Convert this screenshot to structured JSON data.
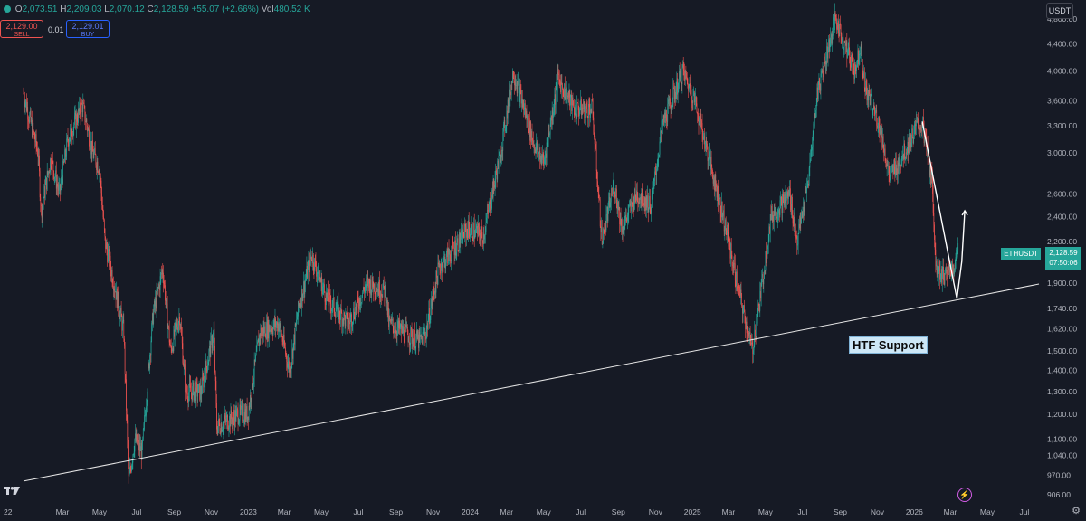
{
  "header": {
    "open_label": "O",
    "open": "2,073.51",
    "high_label": "H",
    "high": "2,209.03",
    "low_label": "L",
    "low": "2,070.12",
    "close_label": "C",
    "close": "2,128.59",
    "change": "+55.07 (+2.66%)",
    "vol_label": "Vol",
    "vol": "480.52 K"
  },
  "trade": {
    "sell_price": "2,129.00",
    "sell_label": "SELL",
    "spread": "0.01",
    "buy_price": "2,129.01",
    "buy_label": "BUY"
  },
  "currency": "USDT",
  "symbol_tag": "ETHUSDT",
  "price_tag": {
    "price": "2,128.59",
    "countdown": "07:50:06"
  },
  "annotation": "HTF Support",
  "logo": "TV",
  "colors": {
    "background": "#161a25",
    "up": "#26a69a",
    "down": "#ef5350",
    "trendline": "#e6e6e6",
    "label_bg": "#cde7f7"
  },
  "chart_data": {
    "type": "candlestick",
    "title": "",
    "scale": "log",
    "ylim": [
      880,
      5000
    ],
    "y_ticks": [
      4800,
      4400,
      4000,
      3600,
      3300,
      3000,
      2600,
      2400,
      2200,
      1900,
      1740,
      1620,
      1500,
      1400,
      1300,
      1200,
      1100,
      1040,
      970,
      906
    ],
    "y_tick_labels": [
      "4,800.00",
      "4,400.00",
      "4,000.00",
      "3,600.00",
      "3,300.00",
      "3,000.00",
      "2,600.00",
      "2,400.00",
      "2,200.00",
      "1,900.00",
      "1,740.00",
      "1,620.00",
      "1,500.00",
      "1,400.00",
      "1,300.00",
      "1,200.00",
      "1,100.00",
      "1,040.00",
      "970.00",
      "906.00"
    ],
    "x_tick_labels": [
      "22",
      "Mar",
      "May",
      "Jul",
      "Sep",
      "Nov",
      "2023",
      "Mar",
      "May",
      "Jul",
      "Sep",
      "Nov",
      "2024",
      "Mar",
      "May",
      "Jul",
      "Sep",
      "Nov",
      "2025",
      "Mar",
      "May",
      "Jul",
      "Sep",
      "Nov",
      "2026",
      "Mar",
      "May",
      "Jul"
    ],
    "x_tick_dates": [
      "2022-01-01",
      "2022-03-01",
      "2022-05-01",
      "2022-07-01",
      "2022-09-01",
      "2022-11-01",
      "2023-01-01",
      "2023-03-01",
      "2023-05-01",
      "2023-07-01",
      "2023-09-01",
      "2023-11-01",
      "2024-01-01",
      "2024-03-01",
      "2024-05-01",
      "2024-07-01",
      "2024-09-01",
      "2024-11-01",
      "2025-01-01",
      "2025-03-01",
      "2025-05-01",
      "2025-07-01",
      "2025-09-01",
      "2025-11-01",
      "2026-01-01",
      "2026-03-01",
      "2026-05-01",
      "2026-07-01"
    ],
    "last_price": 2128.59,
    "price_path": [
      {
        "date": "2021-12-27",
        "close": 3700
      },
      {
        "date": "2022-01-20",
        "close": 3000
      },
      {
        "date": "2022-01-25",
        "close": 2450
      },
      {
        "date": "2022-02-10",
        "close": 2950
      },
      {
        "date": "2022-02-24",
        "close": 2600
      },
      {
        "date": "2022-03-10",
        "close": 3150
      },
      {
        "date": "2022-03-25",
        "close": 3400
      },
      {
        "date": "2022-04-03",
        "close": 3550
      },
      {
        "date": "2022-04-20",
        "close": 3000
      },
      {
        "date": "2022-05-01",
        "close": 2850
      },
      {
        "date": "2022-05-10",
        "close": 2200
      },
      {
        "date": "2022-05-25",
        "close": 1900
      },
      {
        "date": "2022-06-10",
        "close": 1600
      },
      {
        "date": "2022-06-18",
        "close": 950
      },
      {
        "date": "2022-06-28",
        "close": 1100
      },
      {
        "date": "2022-07-10",
        "close": 1050
      },
      {
        "date": "2022-07-28",
        "close": 1700
      },
      {
        "date": "2022-08-13",
        "close": 2000
      },
      {
        "date": "2022-08-26",
        "close": 1500
      },
      {
        "date": "2022-09-10",
        "close": 1700
      },
      {
        "date": "2022-09-20",
        "close": 1300
      },
      {
        "date": "2022-10-15",
        "close": 1300
      },
      {
        "date": "2022-11-05",
        "close": 1600
      },
      {
        "date": "2022-11-10",
        "close": 1150
      },
      {
        "date": "2022-12-15",
        "close": 1200
      },
      {
        "date": "2022-12-31",
        "close": 1200
      },
      {
        "date": "2023-01-20",
        "close": 1600
      },
      {
        "date": "2023-02-20",
        "close": 1650
      },
      {
        "date": "2023-03-10",
        "close": 1400
      },
      {
        "date": "2023-03-25",
        "close": 1750
      },
      {
        "date": "2023-04-15",
        "close": 2100
      },
      {
        "date": "2023-05-10",
        "close": 1800
      },
      {
        "date": "2023-06-15",
        "close": 1650
      },
      {
        "date": "2023-07-15",
        "close": 1900
      },
      {
        "date": "2023-08-15",
        "close": 1850
      },
      {
        "date": "2023-08-20",
        "close": 1650
      },
      {
        "date": "2023-10-10",
        "close": 1550
      },
      {
        "date": "2023-10-20",
        "close": 1600
      },
      {
        "date": "2023-11-10",
        "close": 2000
      },
      {
        "date": "2023-12-28",
        "close": 2300
      },
      {
        "date": "2024-01-23",
        "close": 2250
      },
      {
        "date": "2024-02-20",
        "close": 3000
      },
      {
        "date": "2024-03-12",
        "close": 4000
      },
      {
        "date": "2024-04-15",
        "close": 3100
      },
      {
        "date": "2024-05-01",
        "close": 2900
      },
      {
        "date": "2024-05-25",
        "close": 3900
      },
      {
        "date": "2024-06-20",
        "close": 3500
      },
      {
        "date": "2024-07-20",
        "close": 3500
      },
      {
        "date": "2024-08-05",
        "close": 2200
      },
      {
        "date": "2024-08-25",
        "close": 2700
      },
      {
        "date": "2024-09-07",
        "close": 2300
      },
      {
        "date": "2024-10-01",
        "close": 2600
      },
      {
        "date": "2024-10-25",
        "close": 2500
      },
      {
        "date": "2024-11-12",
        "close": 3300
      },
      {
        "date": "2024-12-16",
        "close": 4000
      },
      {
        "date": "2025-01-05",
        "close": 3600
      },
      {
        "date": "2025-02-03",
        "close": 2800
      },
      {
        "date": "2025-02-25",
        "close": 2300
      },
      {
        "date": "2025-03-15",
        "close": 1900
      },
      {
        "date": "2025-04-09",
        "close": 1500
      },
      {
        "date": "2025-04-22",
        "close": 1800
      },
      {
        "date": "2025-05-10",
        "close": 2400
      },
      {
        "date": "2025-06-10",
        "close": 2600
      },
      {
        "date": "2025-06-22",
        "close": 2200
      },
      {
        "date": "2025-07-10",
        "close": 2700
      },
      {
        "date": "2025-07-25",
        "close": 3700
      },
      {
        "date": "2025-08-24",
        "close": 4800
      },
      {
        "date": "2025-09-25",
        "close": 4000
      },
      {
        "date": "2025-10-05",
        "close": 4400
      },
      {
        "date": "2025-10-11",
        "close": 3800
      },
      {
        "date": "2025-11-05",
        "close": 3300
      },
      {
        "date": "2025-11-21",
        "close": 2750
      },
      {
        "date": "2025-12-15",
        "close": 3000
      },
      {
        "date": "2026-01-06",
        "close": 3300
      },
      {
        "date": "2026-01-15",
        "close": 3300
      },
      {
        "date": "2026-01-30",
        "close": 2700
      },
      {
        "date": "2026-02-06",
        "close": 2000
      },
      {
        "date": "2026-02-20",
        "close": 1950
      },
      {
        "date": "2026-03-05",
        "close": 2000
      },
      {
        "date": "2026-03-14",
        "close": 2128.59
      }
    ],
    "trendline": {
      "start": {
        "date": "2021-12-27",
        "price": 950
      },
      "end": {
        "date": "2026-07-25",
        "price": 1895
      }
    },
    "drawing": [
      {
        "date": "2026-01-14",
        "price": 3350
      },
      {
        "date": "2026-03-12",
        "price": 1800
      },
      {
        "date": "2026-03-20",
        "price": 2050
      },
      {
        "date": "2026-03-25",
        "price": 2450
      }
    ],
    "horizontal_line_price": 2128.59
  }
}
